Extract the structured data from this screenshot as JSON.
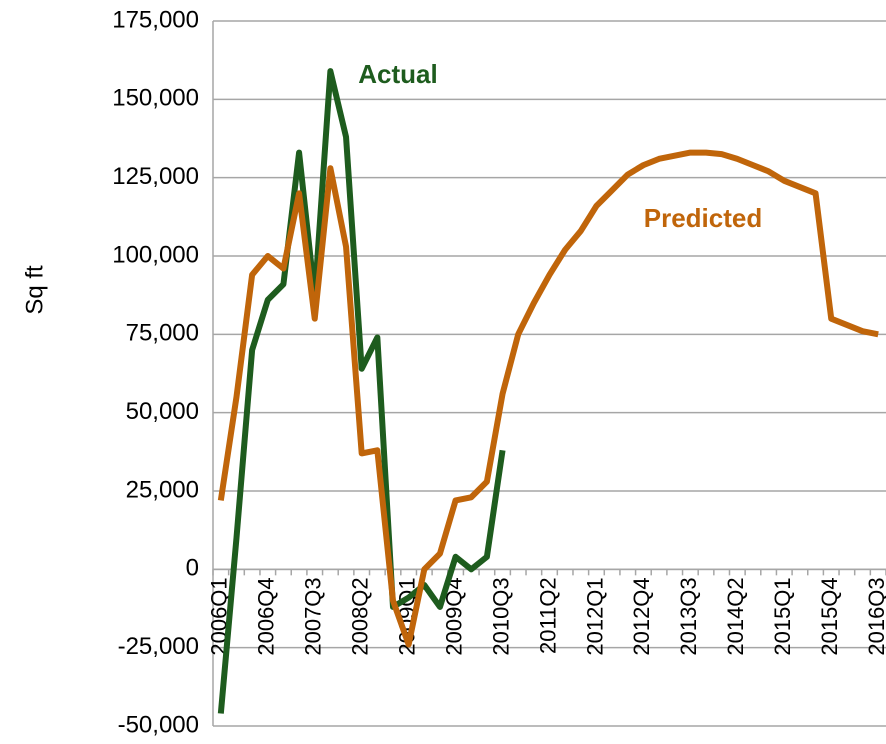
{
  "chart_data": {
    "type": "line",
    "y_label": "Sq ft",
    "annotations": [
      {
        "text": "Actual",
        "series": 0
      },
      {
        "text": "Predicted",
        "series": 1
      }
    ],
    "categories": [
      "2006Q1",
      null,
      null,
      "2006Q4",
      null,
      null,
      "2007Q3",
      null,
      null,
      "2008Q2",
      null,
      null,
      "2009Q1",
      null,
      null,
      "2009Q4",
      null,
      null,
      "2010Q3",
      null,
      null,
      "2011Q2",
      null,
      null,
      "2012Q1",
      null,
      null,
      "2012Q4",
      null,
      null,
      "2013Q3",
      null,
      null,
      "2014Q2",
      null,
      null,
      "2015Q1",
      null,
      null,
      "2015Q4",
      null,
      null,
      "2016Q3"
    ],
    "series": [
      {
        "name": "Actual",
        "color": "#1e5c1e",
        "values": [
          -46000,
          10000,
          70000,
          86000,
          91000,
          133000,
          87000,
          159000,
          138000,
          64000,
          74000,
          -12000,
          -9000,
          -5000,
          -12000,
          4000,
          0,
          4000,
          38000,
          null,
          null,
          null,
          null,
          null,
          null,
          null,
          null,
          null,
          null,
          null,
          null,
          null,
          null,
          null,
          null,
          null,
          null,
          null,
          null,
          null,
          null,
          null,
          null
        ]
      },
      {
        "name": "Predicted",
        "color": "#c0650a",
        "values": [
          22000,
          55000,
          94000,
          100000,
          96000,
          120000,
          80000,
          128000,
          103000,
          37000,
          38000,
          -10000,
          -24000,
          0,
          5000,
          22000,
          23000,
          28000,
          56000,
          75000,
          85000,
          94000,
          102000,
          108000,
          116000,
          121000,
          126000,
          129000,
          131000,
          132000,
          133000,
          133000,
          132500,
          131000,
          129000,
          127000,
          124000,
          122000,
          120000,
          80000,
          78000,
          76000,
          75000
        ]
      }
    ],
    "ylim": [
      -50000,
      175000
    ],
    "yticks": [
      {
        "value": -50000,
        "label": "-50,000"
      },
      {
        "value": -25000,
        "label": "-25,000"
      },
      0,
      {
        "value": 25000,
        "label": "25,000"
      },
      {
        "value": 50000,
        "label": "50,000"
      },
      {
        "value": 75000,
        "label": "75,000"
      },
      {
        "value": 100000,
        "label": "100,000"
      },
      {
        "value": 125000,
        "label": "125,000"
      },
      {
        "value": 150000,
        "label": "150,000"
      },
      {
        "value": 175000,
        "label": "175,000"
      }
    ],
    "grid": true
  }
}
